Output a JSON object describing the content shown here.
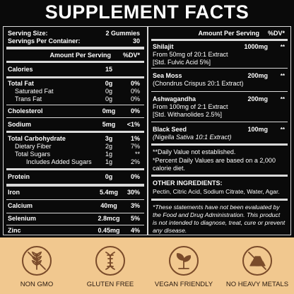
{
  "title": "SUPPLEMENT FACTS",
  "serving_size_label": "Serving Size:",
  "serving_size_value": "2 Gummies",
  "servings_label": "Servings Per Container:",
  "servings_value": "30",
  "left_header": {
    "amount": "Amount Per Serving",
    "dv": "%DV*"
  },
  "left_rows": [
    {
      "name": "Calories",
      "amount": "15",
      "dv": ""
    },
    {
      "name": "Total Fat",
      "amount": "0g",
      "dv": "0%"
    },
    {
      "name": "Saturated Fat",
      "amount": "0g",
      "dv": "0%"
    },
    {
      "name": "Trans Fat",
      "amount": "0g",
      "dv": "0%"
    },
    {
      "name": "Cholesterol",
      "amount": "0mg",
      "dv": "0%"
    },
    {
      "name": "Sodium",
      "amount": "5mg",
      "dv": "<1%"
    },
    {
      "name": "Total Carbohydrate",
      "amount": "3g",
      "dv": "1%"
    },
    {
      "name": "Dietary Fiber",
      "amount": "2g",
      "dv": "7%"
    },
    {
      "name": "Total Sugars",
      "amount": "1g",
      "dv": "**"
    },
    {
      "name": "Includes Added Sugars",
      "amount": "1g",
      "dv": "2%"
    },
    {
      "name": "Protein",
      "amount": "0g",
      "dv": "0%"
    },
    {
      "name": "Iron",
      "amount": "5.4mg",
      "dv": "30%"
    },
    {
      "name": "Calcium",
      "amount": "40mg",
      "dv": "3%"
    },
    {
      "name": "Selenium",
      "amount": "2.8mcg",
      "dv": "5%"
    },
    {
      "name": "Zinc",
      "amount": "0.45mg",
      "dv": "4%"
    }
  ],
  "right_header": {
    "amount": "Amount Per Serving",
    "dv": "%DV*"
  },
  "ingredients": [
    {
      "name": "Shilajit",
      "amount": "1000mg",
      "dv": "**",
      "sub1": "From 50mg of 20:1 Extract",
      "sub2": "[Std. Fulvic Acid 5%]"
    },
    {
      "name": "Sea Moss",
      "amount": "200mg",
      "dv": "**",
      "sub1": "(Chondrus Crispus 20:1 Extract)",
      "sub2": ""
    },
    {
      "name": "Ashwagandha",
      "amount": "200mg",
      "dv": "**",
      "sub1": "From 100mg of 2:1 Extract",
      "sub2": "[Std. Withanolides 2.5%]"
    },
    {
      "name": "Black Seed",
      "amount": "100mg",
      "dv": "**",
      "sub1": "(Nigella Sativa 10:1 Extract)",
      "sub2": ""
    }
  ],
  "note_dv": "**Daily Value not established.",
  "note_percent_1": "*Percent Daily Values are based on a 2,000",
  "note_percent_2": "calorie diet.",
  "other_title": "OTHER INGREDIENTS:",
  "other_text": "Pectin, Citric Acid, Sodium Citrate, Water, Agar.",
  "disclaimer": [
    "*These statements have not been evaluated by",
    "the Food and Drug Administration. This product",
    "is not intended to diagnose, treat, cure or prevent",
    "any disease."
  ],
  "badges": [
    {
      "label": "NON GMO",
      "icon": "wheat-icon"
    },
    {
      "label": "GLUTEN FREE",
      "icon": "dna-icon"
    },
    {
      "label": "VEGAN FRIENDLY",
      "icon": "sprout-icon"
    },
    {
      "label": "NO HEAVY METALS",
      "icon": "metal-bars-icon"
    }
  ],
  "colors": {
    "background": "#0a0a0a",
    "accent": "#f1c88f",
    "icon": "#7a4b2a"
  }
}
